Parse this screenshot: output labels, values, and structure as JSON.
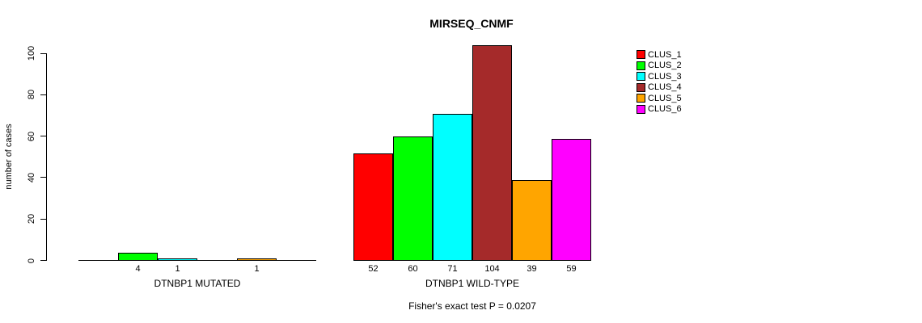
{
  "title": "MIRSEQ_CNMF",
  "footer": "Fisher's exact test P = 0.0207",
  "chart_data": {
    "type": "bar",
    "title": "MIRSEQ_CNMF",
    "xlabel": "",
    "ylabel": "number of cases",
    "ylim": [
      0,
      100
    ],
    "yticks": [
      0,
      20,
      40,
      60,
      80,
      100
    ],
    "grid": false,
    "legend_position": "right",
    "clusters": [
      "CLUS_1",
      "CLUS_2",
      "CLUS_3",
      "CLUS_4",
      "CLUS_5",
      "CLUS_6"
    ],
    "colors": [
      "#ff0000",
      "#00ff00",
      "#00ffff",
      "#a52a2a",
      "#ffa500",
      "#ff00ff"
    ],
    "groups": [
      {
        "label": "DTNBP1 MUTATED",
        "values": [
          0,
          4,
          1,
          0,
          1,
          0
        ],
        "bar_labels": [
          "",
          "4",
          "1",
          "",
          "1",
          ""
        ]
      },
      {
        "label": "DTNBP1 WILD-TYPE",
        "values": [
          52,
          60,
          71,
          104,
          39,
          59
        ],
        "bar_labels": [
          "52",
          "60",
          "71",
          "104",
          "39",
          "59"
        ]
      }
    ],
    "annotation": "Fisher's exact test P = 0.0207"
  }
}
